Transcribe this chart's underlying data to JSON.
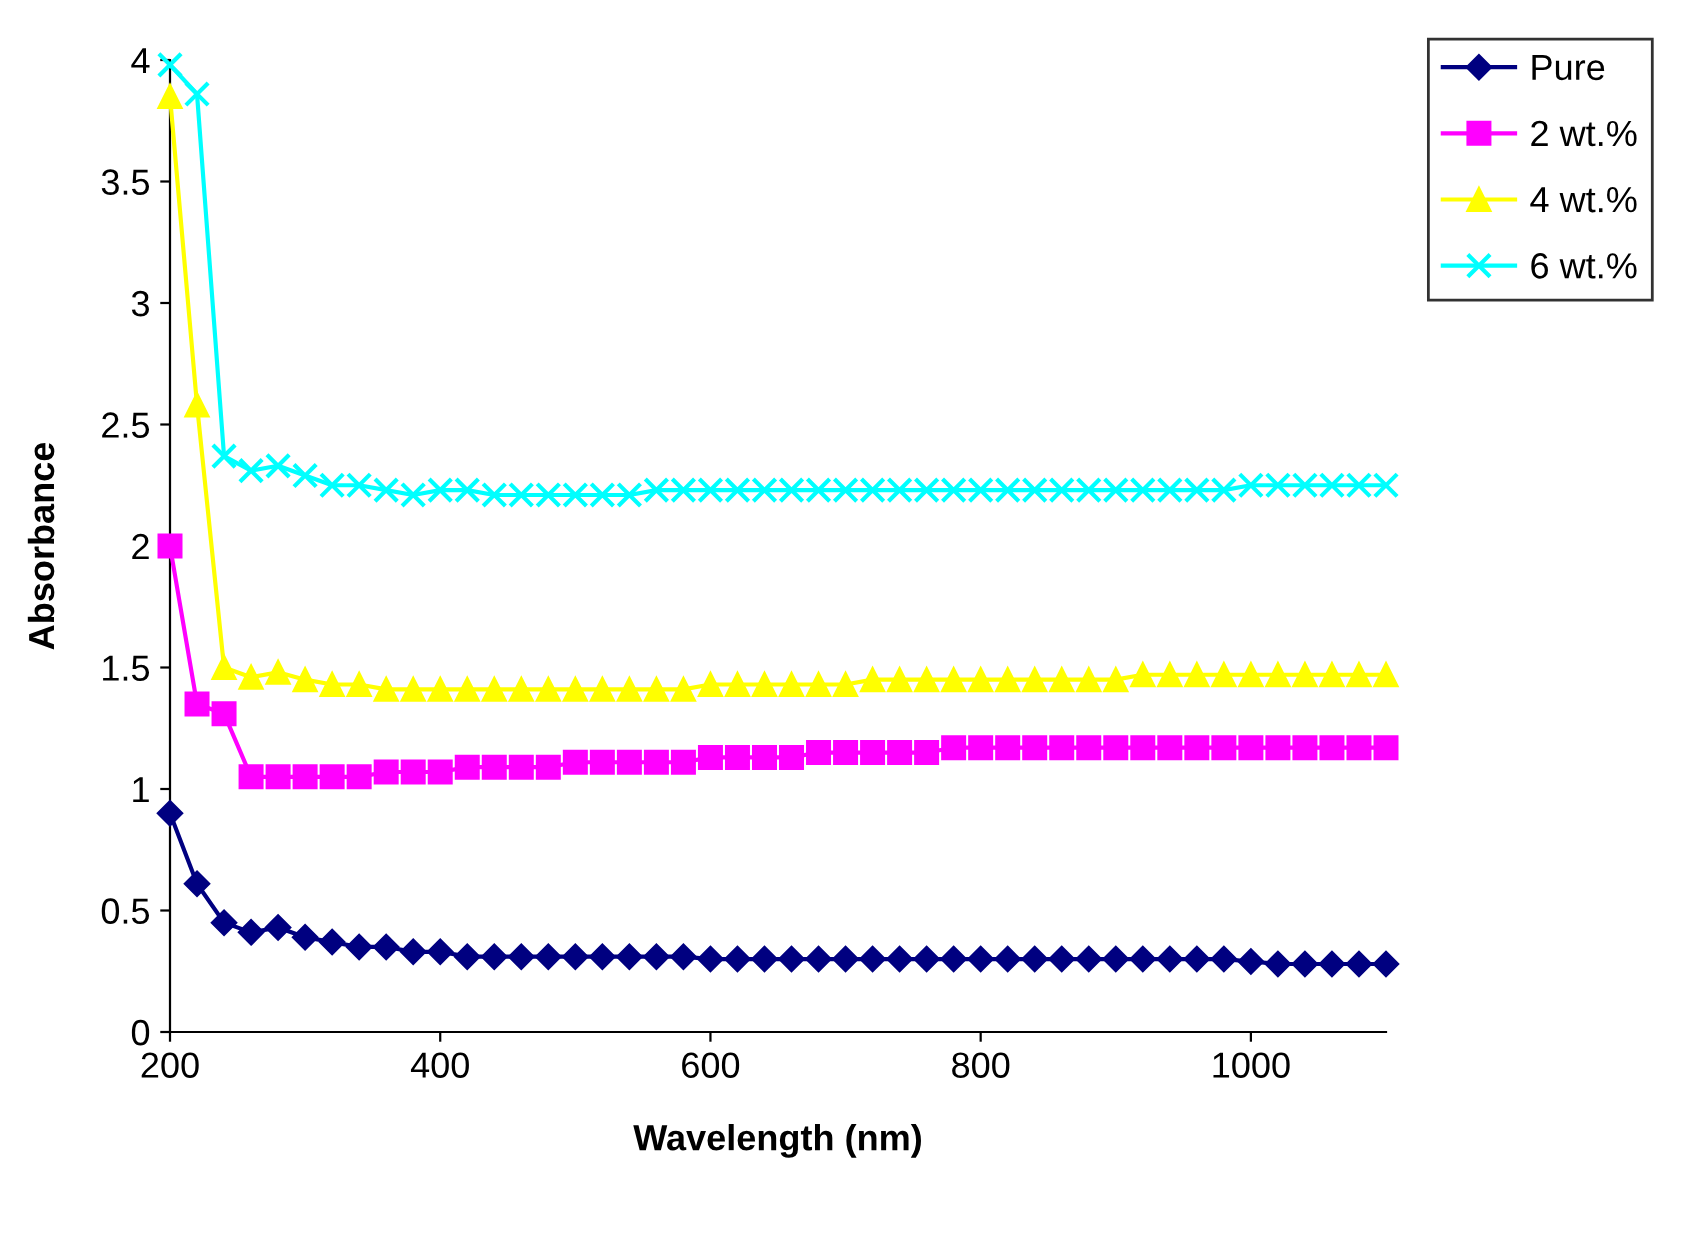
{
  "chart_data": {
    "type": "line",
    "xlabel": "Wavelength (nm)",
    "ylabel": "Absorbance",
    "x": [
      200,
      220,
      240,
      260,
      280,
      300,
      320,
      340,
      360,
      380,
      400,
      420,
      440,
      460,
      480,
      500,
      520,
      540,
      560,
      580,
      600,
      620,
      640,
      660,
      680,
      700,
      720,
      740,
      760,
      780,
      800,
      820,
      840,
      860,
      880,
      900,
      920,
      940,
      960,
      980,
      1000,
      1020,
      1040,
      1060,
      1080,
      1100
    ],
    "series": [
      {
        "name": "Pure",
        "color": "#000080",
        "marker": "diamond",
        "values": [
          0.9,
          0.61,
          0.45,
          0.41,
          0.43,
          0.39,
          0.37,
          0.35,
          0.35,
          0.33,
          0.33,
          0.31,
          0.31,
          0.31,
          0.31,
          0.31,
          0.31,
          0.31,
          0.31,
          0.31,
          0.3,
          0.3,
          0.3,
          0.3,
          0.3,
          0.3,
          0.3,
          0.3,
          0.3,
          0.3,
          0.3,
          0.3,
          0.3,
          0.3,
          0.3,
          0.3,
          0.3,
          0.3,
          0.3,
          0.3,
          0.29,
          0.28,
          0.28,
          0.28,
          0.28,
          0.28
        ]
      },
      {
        "name": "2 wt.%",
        "color": "#ff00ff",
        "marker": "square",
        "values": [
          2.0,
          1.35,
          1.31,
          1.05,
          1.05,
          1.05,
          1.05,
          1.05,
          1.07,
          1.07,
          1.07,
          1.09,
          1.09,
          1.09,
          1.09,
          1.11,
          1.11,
          1.11,
          1.11,
          1.11,
          1.13,
          1.13,
          1.13,
          1.13,
          1.15,
          1.15,
          1.15,
          1.15,
          1.15,
          1.17,
          1.17,
          1.17,
          1.17,
          1.17,
          1.17,
          1.17,
          1.17,
          1.17,
          1.17,
          1.17,
          1.17,
          1.17,
          1.17,
          1.17,
          1.17,
          1.17
        ]
      },
      {
        "name": "4 wt.%",
        "color": "#ffff00",
        "marker": "triangle",
        "values": [
          3.85,
          2.58,
          1.5,
          1.46,
          1.48,
          1.45,
          1.43,
          1.43,
          1.41,
          1.41,
          1.41,
          1.41,
          1.41,
          1.41,
          1.41,
          1.41,
          1.41,
          1.41,
          1.41,
          1.41,
          1.43,
          1.43,
          1.43,
          1.43,
          1.43,
          1.43,
          1.45,
          1.45,
          1.45,
          1.45,
          1.45,
          1.45,
          1.45,
          1.45,
          1.45,
          1.45,
          1.47,
          1.47,
          1.47,
          1.47,
          1.47,
          1.47,
          1.47,
          1.47,
          1.47,
          1.47
        ]
      },
      {
        "name": "6 wt.%",
        "color": "#00ffff",
        "marker": "cross",
        "values": [
          3.98,
          3.86,
          2.37,
          2.31,
          2.33,
          2.29,
          2.25,
          2.25,
          2.23,
          2.21,
          2.23,
          2.23,
          2.21,
          2.21,
          2.21,
          2.21,
          2.21,
          2.21,
          2.23,
          2.23,
          2.23,
          2.23,
          2.23,
          2.23,
          2.23,
          2.23,
          2.23,
          2.23,
          2.23,
          2.23,
          2.23,
          2.23,
          2.23,
          2.23,
          2.23,
          2.23,
          2.23,
          2.23,
          2.23,
          2.23,
          2.25,
          2.25,
          2.25,
          2.25,
          2.25,
          2.25
        ]
      }
    ],
    "xlim": [
      200,
      1100
    ],
    "xticks": [
      200,
      400,
      600,
      800,
      1000
    ],
    "ylim": [
      0,
      4
    ],
    "yticks": [
      0,
      0.5,
      1,
      1.5,
      2,
      2.5,
      3,
      3.5,
      4
    ],
    "grid": false,
    "legend": "top right",
    "line_style": "solid"
  }
}
